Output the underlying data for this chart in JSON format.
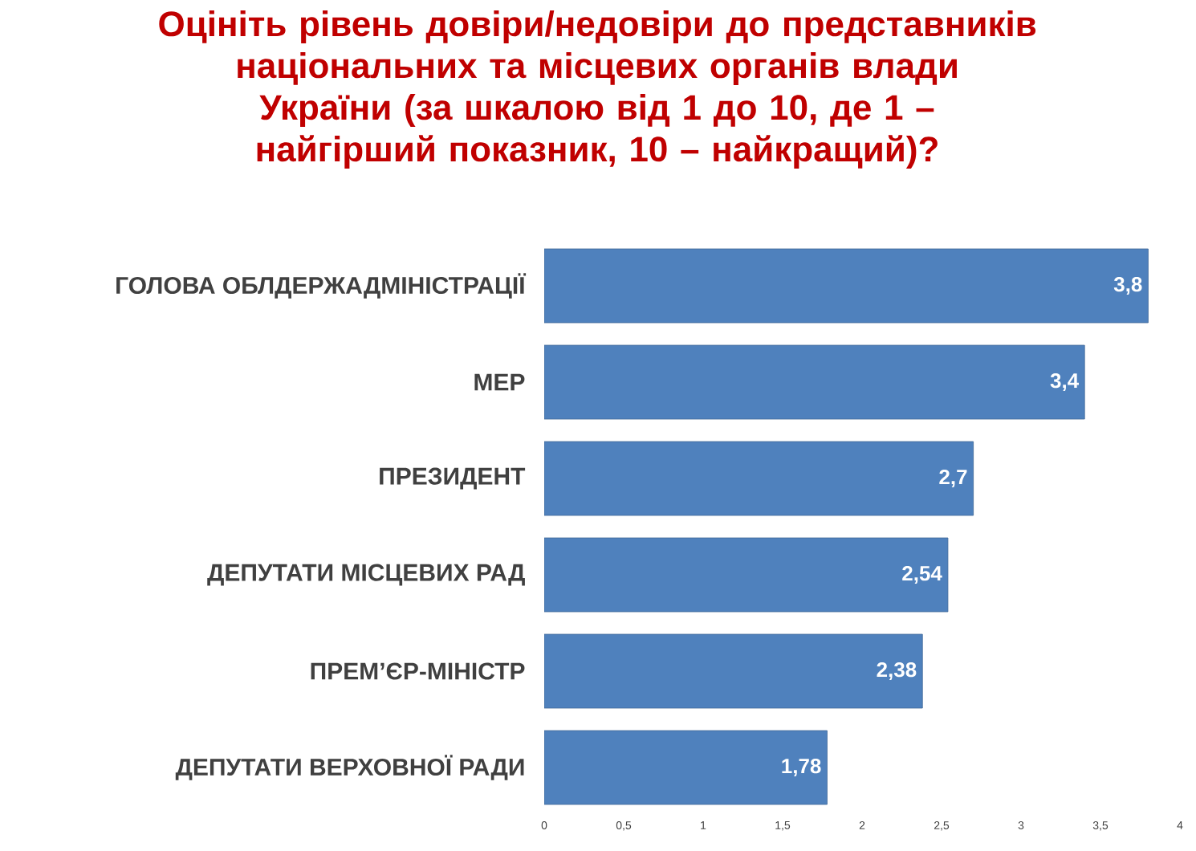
{
  "chart_data": {
    "type": "bar",
    "orientation": "horizontal",
    "title": "Оцініть рівень довіри/недовіри до представників національних та місцевих органів влади України (за шкалою від 1 до 10, де 1 – найгірший показник, 10 – найкращий)?",
    "categories": [
      "ГОЛОВА ОБЛДЕРЖАДМІНІСТРАЦІЇ",
      "МЕР",
      "ПРЕЗИДЕНТ",
      "ДЕПУТАТИ МІСЦЕВИХ РАД",
      "ПРЕМ’ЄР-МІНІСТР",
      "ДЕПУТАТИ ВЕРХОВНОЇ РАДИ"
    ],
    "values": [
      3.8,
      3.4,
      2.7,
      2.54,
      2.38,
      1.78
    ],
    "value_labels": [
      "3,8",
      "3,4",
      "2,7",
      "2,54",
      "2,38",
      "1,78"
    ],
    "color": "#4f81bd",
    "xlim": [
      0,
      4
    ],
    "xticks": [
      0,
      {
        "value": 0.5,
        "label": "0,5"
      },
      1,
      {
        "value": 1.5,
        "label": "1,5"
      },
      2,
      {
        "value": 2.5,
        "label": "2,5"
      },
      3,
      {
        "value": 3.5,
        "label": "3,5"
      },
      4
    ]
  }
}
